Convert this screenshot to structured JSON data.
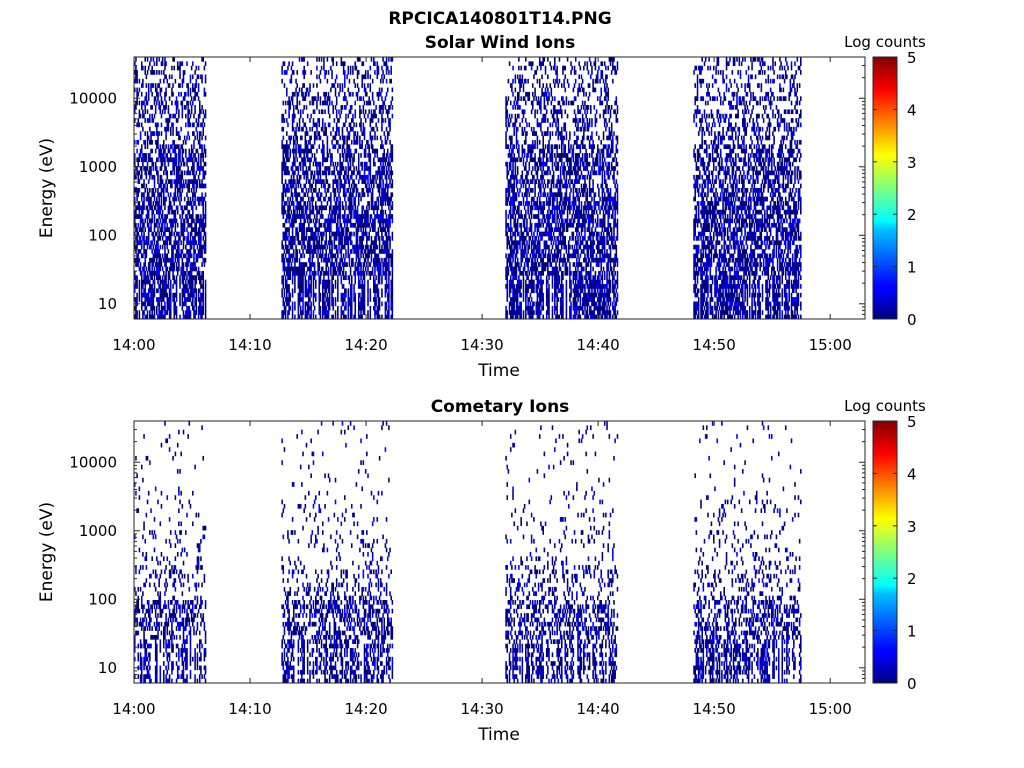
{
  "figure": {
    "title": "RPCICA140801T14.PNG"
  },
  "colormap": [
    "#00007f",
    "#0000ff",
    "#007fff",
    "#00ffff",
    "#7fff7f",
    "#ffff00",
    "#ff7f00",
    "#ff0000",
    "#7f0000"
  ],
  "chart_data": [
    {
      "type": "heatmap",
      "title": "Solar Wind Ions",
      "xlabel": "Time",
      "ylabel": "Energy (eV)",
      "yscale": "log",
      "xlim": [
        "14:00",
        "15:03"
      ],
      "ylim": [
        6,
        40000
      ],
      "xticks": [
        "14:00",
        "14:10",
        "14:20",
        "14:30",
        "14:40",
        "14:50",
        "15:00"
      ],
      "yticks": [
        10,
        100,
        1000,
        10000
      ],
      "ytick_labels": [
        "10",
        "100",
        "1000",
        "10000"
      ],
      "colorbar": {
        "label": "Log counts",
        "range": [
          0,
          5
        ],
        "ticks": [
          "0",
          "1",
          "2",
          "3",
          "4",
          "5"
        ]
      },
      "grid": false,
      "data_segments": [
        {
          "start": "14:00",
          "end": "14:06.2"
        },
        {
          "start": "14:12.7",
          "end": "14:22.3"
        },
        {
          "start": "14:32",
          "end": "14:41.7"
        },
        {
          "start": "14:48.2",
          "end": "14:57.5"
        }
      ],
      "observed_log_counts_range": [
        0,
        0.8
      ]
    },
    {
      "type": "heatmap",
      "title": "Cometary Ions",
      "xlabel": "Time",
      "ylabel": "Energy (eV)",
      "yscale": "log",
      "xlim": [
        "14:00",
        "15:03"
      ],
      "ylim": [
        6,
        40000
      ],
      "xticks": [
        "14:00",
        "14:10",
        "14:20",
        "14:30",
        "14:40",
        "14:50",
        "15:00"
      ],
      "yticks": [
        10,
        100,
        1000,
        10000
      ],
      "ytick_labels": [
        "10",
        "100",
        "1000",
        "10000"
      ],
      "colorbar": {
        "label": "Log counts",
        "range": [
          0,
          5
        ],
        "ticks": [
          "0",
          "1",
          "2",
          "3",
          "4",
          "5"
        ]
      },
      "grid": false,
      "data_segments": [
        {
          "start": "14:00",
          "end": "14:06.2"
        },
        {
          "start": "14:12.7",
          "end": "14:22.3"
        },
        {
          "start": "14:32",
          "end": "14:41.7"
        },
        {
          "start": "14:48.2",
          "end": "14:57.5"
        }
      ],
      "observed_log_counts_range": [
        0,
        0.8
      ]
    }
  ]
}
